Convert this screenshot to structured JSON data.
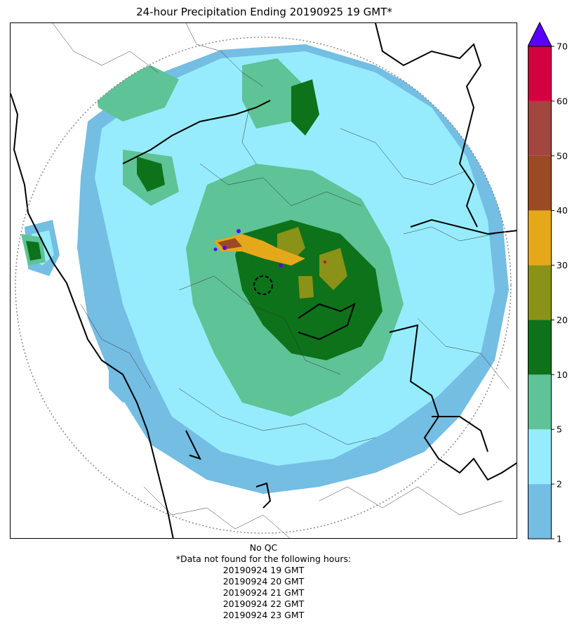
{
  "title": "24-hour Precipitation Ending 20190925 19 GMT*",
  "colorbar": {
    "ticks": [
      "1",
      "2",
      "5",
      "10",
      "20",
      "30",
      "40",
      "50",
      "60",
      "70"
    ],
    "colors": [
      "#74bde3",
      "#96ecfc",
      "#5ec396",
      "#0d7219",
      "#8a9217",
      "#e6a81b",
      "#9b4a24",
      "#a2463f",
      "#d5003f"
    ],
    "extend_color": "#5a00ff"
  },
  "footer": {
    "qc": "No QC",
    "missing_header": "*Data not found for the following hours:",
    "missing_hours": [
      "20190924 19 GMT",
      "20190924 20 GMT",
      "20190924 21 GMT",
      "20190924 22 GMT",
      "20190924 23 GMT"
    ]
  }
}
